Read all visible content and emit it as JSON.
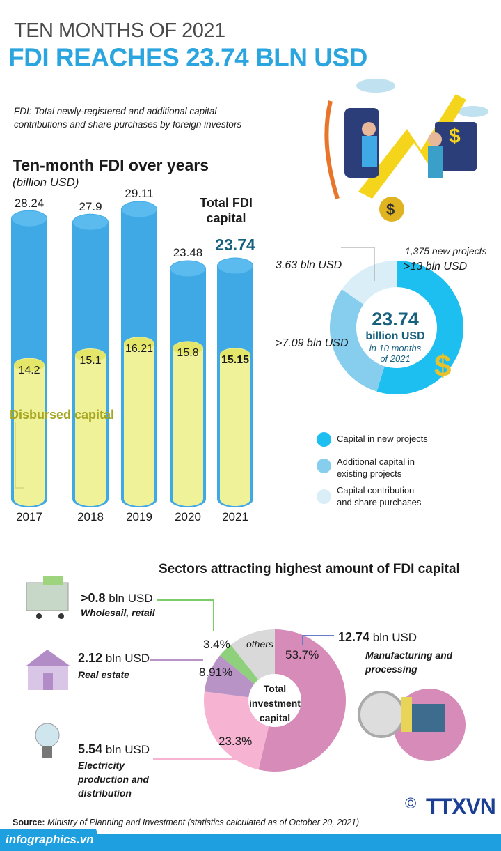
{
  "header": {
    "supertitle": "TEN MONTHS OF 2021",
    "title": "FDI REACHES 23.74 BLN USD",
    "note": "FDI: Total newly-registered and additional capital contributions and share purchases by foreign investors"
  },
  "colors": {
    "accent": "#2aa5df",
    "total_bar": "#3fa9e6",
    "disbursed_bar": "#f0f29a",
    "new": "#1cbff0",
    "additional": "#86cdee",
    "contribution": "#daeef8"
  },
  "chart_data": [
    {
      "type": "bar",
      "title": "Ten-month FDI over years",
      "ylabel": "(billion USD)",
      "categories": [
        "2017",
        "2018",
        "2019",
        "2020",
        "2021"
      ],
      "series": [
        {
          "name": "Total FDI capital",
          "values": [
            28.24,
            27.9,
            29.11,
            23.48,
            23.74
          ]
        },
        {
          "name": "Disbursed capital",
          "values": [
            14.2,
            15.1,
            16.21,
            15.8,
            15.15
          ]
        }
      ],
      "total_label": "Total FDI capital",
      "disbursed_label": "Disbursed capital"
    },
    {
      "type": "pie",
      "center": {
        "value": "23.74",
        "unit": "billion USD",
        "note": "in 10 months",
        "note2": "of 2021"
      },
      "slices": [
        {
          "name": "Capital in new projects",
          "value": 13,
          "label": ">13 bln USD",
          "extra": "1,375 new projects"
        },
        {
          "name": "Additional capital in existing projects",
          "value": 7.09,
          "label": ">7.09 bln USD"
        },
        {
          "name": "Capital contribution and share purchases",
          "value": 3.63,
          "label": "3.63 bln USD"
        }
      ],
      "legend": [
        "Capital in new projects",
        "Additional capital in existing projects",
        "Capital contribution and share purchases"
      ]
    },
    {
      "type": "pie",
      "title": "Sectors attracting highest amount of FDI capital",
      "center": "Total investment capital",
      "slices": [
        {
          "name": "Manufacturing and processing",
          "percent": 53.7,
          "value_label": "12.74",
          "color": "#d68bb8"
        },
        {
          "name": "Electricity production and distribution",
          "percent": 23.3,
          "value_label": "5.54",
          "color": "#f6b3d2"
        },
        {
          "name": "Real estate",
          "percent": 8.91,
          "value_label": "2.12",
          "color": "#b894c6"
        },
        {
          "name": "Wholesail, retail",
          "percent": 3.4,
          "value_label": ">0.8",
          "color": "#8fd07c"
        },
        {
          "name": "others",
          "percent": 10.69,
          "color": "#d9d9d9"
        }
      ],
      "unit": "bln USD"
    }
  ],
  "labels": {
    "pct": [
      "53.7%",
      "23.3%",
      "8.91%",
      "3.4%"
    ],
    "others": "others",
    "bln": "bln USD",
    "bln_usd_it": "bln USD"
  },
  "footer": {
    "source_label": "Source:",
    "source": "Ministry of Planning and Investment (statistics calculated as of October 20, 2021)",
    "site": "infographics.vn",
    "logo": "TTXVN",
    "copyright": "©"
  }
}
